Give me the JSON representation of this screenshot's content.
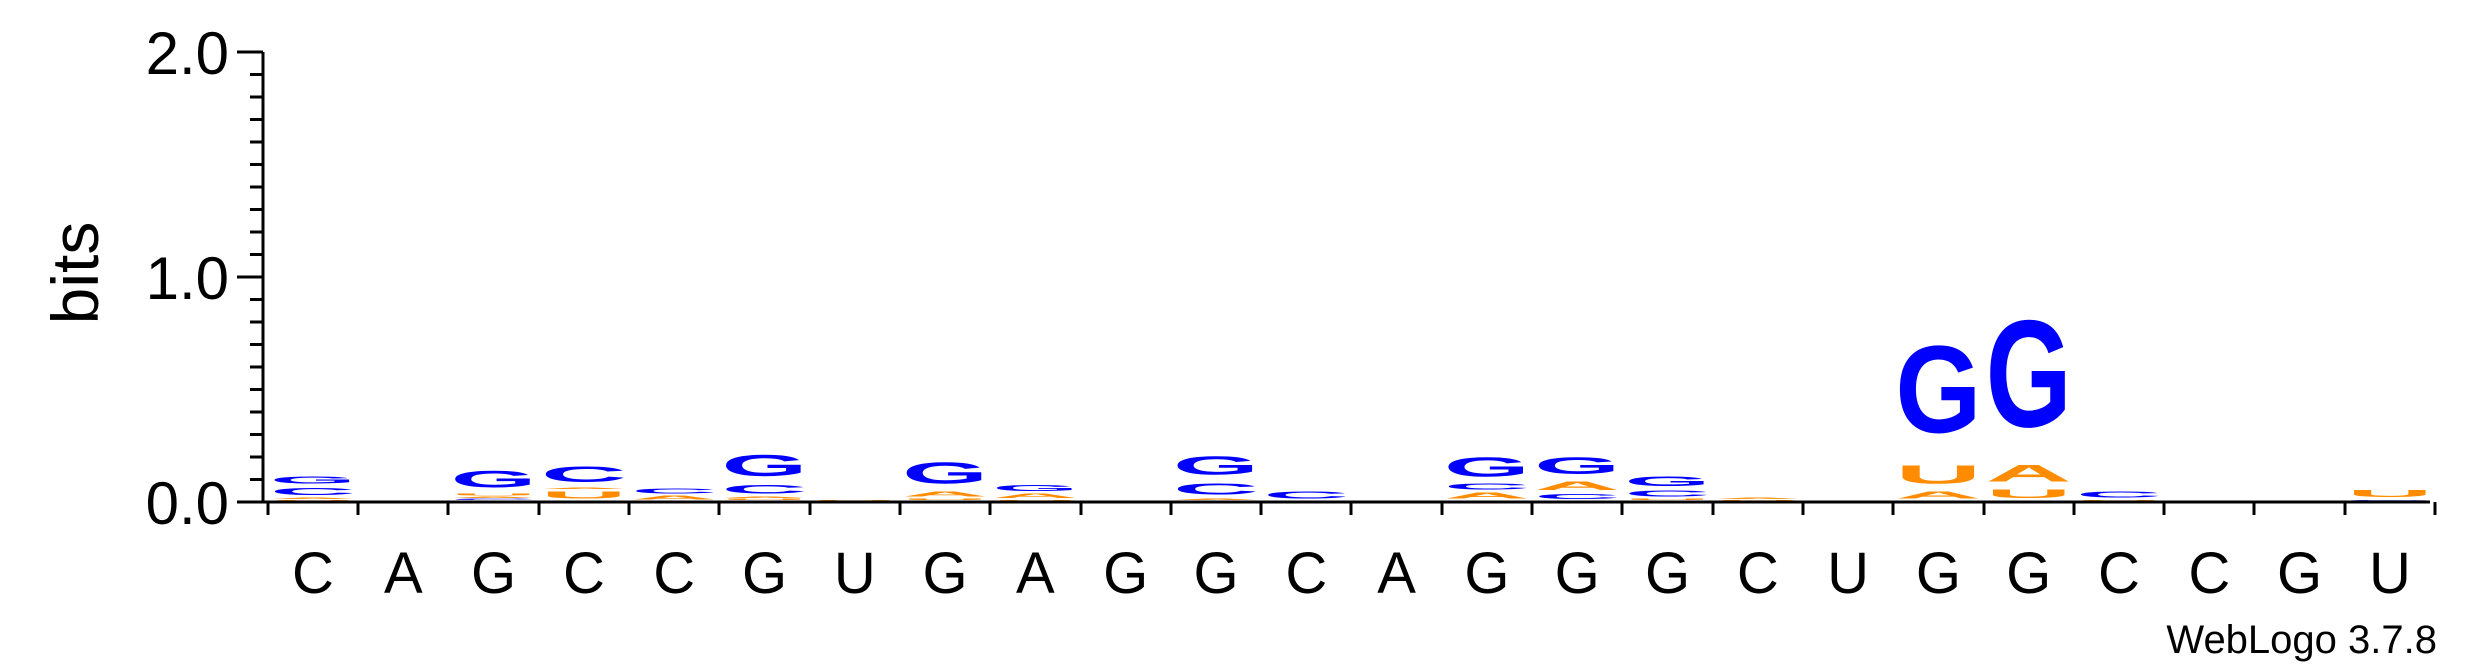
{
  "chart_data": {
    "type": "sequence-logo",
    "ylabel": "bits",
    "ylim": [
      0,
      2.0
    ],
    "yticks": [
      {
        "value": 0.0,
        "label": "0.0"
      },
      {
        "value": 1.0,
        "label": "1.0"
      },
      {
        "value": 2.0,
        "label": "2.0"
      }
    ],
    "ytick_minor_step": 0.1,
    "credit": "WebLogo 3.7.8",
    "colors": {
      "G": "#0000ff",
      "C": "#0000ff",
      "A": "#ff8c00",
      "U": "#ff8c00"
    },
    "positions": [
      {
        "label": "C",
        "stack": [
          {
            "letter": "U",
            "bits": 0.005
          },
          {
            "letter": "A",
            "bits": 0.01
          },
          {
            "letter": "C",
            "bits": 0.05
          },
          {
            "letter": "G",
            "bits": 0.05
          }
        ]
      },
      {
        "label": "A",
        "stack": []
      },
      {
        "label": "G",
        "stack": [
          {
            "letter": "C",
            "bits": 0.01
          },
          {
            "letter": "A",
            "bits": 0.01
          },
          {
            "letter": "U",
            "bits": 0.015
          },
          {
            "letter": "G",
            "bits": 0.12
          }
        ]
      },
      {
        "label": "C",
        "stack": [
          {
            "letter": "U",
            "bits": 0.05
          },
          {
            "letter": "A",
            "bits": 0.01
          },
          {
            "letter": "C",
            "bits": 0.11
          }
        ]
      },
      {
        "label": "C",
        "stack": [
          {
            "letter": "A",
            "bits": 0.025
          },
          {
            "letter": "C",
            "bits": 0.035
          }
        ]
      },
      {
        "label": "G",
        "stack": [
          {
            "letter": "U",
            "bits": 0.01
          },
          {
            "letter": "A",
            "bits": 0.01
          },
          {
            "letter": "C",
            "bits": 0.06
          },
          {
            "letter": "G",
            "bits": 0.15
          }
        ]
      },
      {
        "label": "U",
        "stack": [
          {
            "letter": "U",
            "bits": 0.005
          }
        ]
      },
      {
        "label": "G",
        "stack": [
          {
            "letter": "U",
            "bits": 0.01
          },
          {
            "letter": "A",
            "bits": 0.035
          },
          {
            "letter": "G",
            "bits": 0.15
          }
        ]
      },
      {
        "label": "A",
        "stack": [
          {
            "letter": "U",
            "bits": 0.005
          },
          {
            "letter": "A",
            "bits": 0.03
          },
          {
            "letter": "G",
            "bits": 0.04
          }
        ]
      },
      {
        "label": "G",
        "stack": []
      },
      {
        "label": "G",
        "stack": [
          {
            "letter": "A",
            "bits": 0.01
          },
          {
            "letter": "C",
            "bits": 0.08
          },
          {
            "letter": "G",
            "bits": 0.13
          }
        ]
      },
      {
        "label": "C",
        "stack": [
          {
            "letter": "C",
            "bits": 0.05
          }
        ]
      },
      {
        "label": "A",
        "stack": []
      },
      {
        "label": "G",
        "stack": [
          {
            "letter": "A",
            "bits": 0.04
          },
          {
            "letter": "C",
            "bits": 0.04
          },
          {
            "letter": "G",
            "bits": 0.14
          }
        ]
      },
      {
        "label": "G",
        "stack": [
          {
            "letter": "C",
            "bits": 0.035
          },
          {
            "letter": "A",
            "bits": 0.06
          },
          {
            "letter": "G",
            "bits": 0.12
          }
        ]
      },
      {
        "label": "G",
        "stack": [
          {
            "letter": "U",
            "bits": 0.01
          },
          {
            "letter": "C",
            "bits": 0.04
          },
          {
            "letter": "G",
            "bits": 0.07
          }
        ]
      },
      {
        "label": "C",
        "stack": [
          {
            "letter": "U",
            "bits": 0.005
          },
          {
            "letter": "A",
            "bits": 0.008
          }
        ]
      },
      {
        "label": "U",
        "stack": []
      },
      {
        "label": "G",
        "stack": [
          {
            "letter": "A",
            "bits": 0.05
          },
          {
            "letter": "U",
            "bits": 0.13
          },
          {
            "letter": "G",
            "bits": 0.62
          }
        ]
      },
      {
        "label": "G",
        "stack": [
          {
            "letter": "U",
            "bits": 0.06
          },
          {
            "letter": "A",
            "bits": 0.12
          },
          {
            "letter": "G",
            "bits": 0.76
          }
        ]
      },
      {
        "label": "C",
        "stack": [
          {
            "letter": "U",
            "bits": 0.005
          },
          {
            "letter": "C",
            "bits": 0.04
          }
        ]
      },
      {
        "label": "C",
        "stack": []
      },
      {
        "label": "G",
        "stack": []
      },
      {
        "label": "U",
        "stack": [
          {
            "letter": "G",
            "bits": 0.005
          },
          {
            "letter": "U",
            "bits": 0.05
          }
        ]
      }
    ]
  }
}
